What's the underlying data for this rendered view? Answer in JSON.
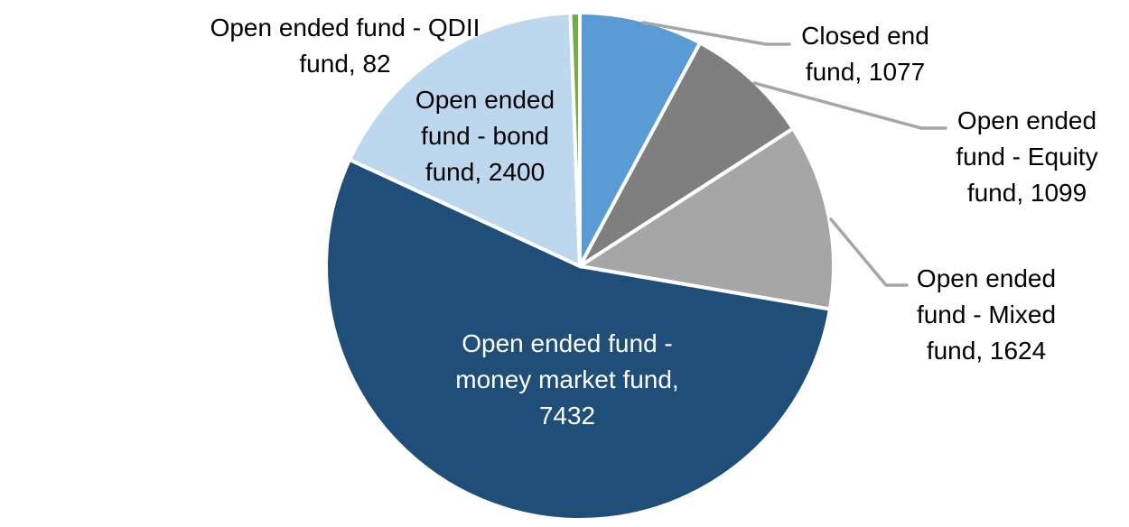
{
  "chart_data": {
    "type": "pie",
    "title": "",
    "total": 13714,
    "start_angle_deg": 0,
    "clockwise": true,
    "background_color": "#FFFFFF",
    "slice_border_color": "#FFFFFF",
    "leader_line_color": "#A6A6A6",
    "slices": [
      {
        "name": "Closed end fund",
        "value": 1077,
        "color": "#5B9BD5",
        "label_color": "#000000",
        "label_position": "outside",
        "leader_line": true,
        "lines": [
          "Closed end",
          "fund, 1077"
        ]
      },
      {
        "name": "Open ended fund - Equity fund",
        "value": 1099,
        "color": "#7F7F7F",
        "label_color": "#000000",
        "label_position": "outside",
        "leader_line": true,
        "lines": [
          "Open ended",
          "fund - Equity",
          "fund, 1099"
        ]
      },
      {
        "name": "Open ended fund - Mixed fund",
        "value": 1624,
        "color": "#A6A6A6",
        "label_color": "#000000",
        "label_position": "outside",
        "leader_line": true,
        "lines": [
          "Open ended",
          "fund - Mixed",
          "fund, 1624"
        ]
      },
      {
        "name": "Open ended fund - money market fund",
        "value": 7432,
        "color": "#1F4E79",
        "label_color": "#FFFFFF",
        "label_position": "inside",
        "leader_line": false,
        "lines": [
          "Open ended fund -",
          "money market fund,",
          "7432"
        ]
      },
      {
        "name": "Open ended fund - bond fund",
        "value": 2400,
        "color": "#BDD7EE",
        "label_color": "#000000",
        "label_position": "outside",
        "leader_line": false,
        "lines": [
          "Open ended",
          "fund - bond",
          "fund, 2400"
        ]
      },
      {
        "name": "Open ended fund - QDII fund",
        "value": 82,
        "color": "#70AD47",
        "label_color": "#000000",
        "label_position": "outside",
        "leader_line": false,
        "lines": [
          "Open ended fund - QDII",
          "fund, 82"
        ]
      }
    ]
  }
}
